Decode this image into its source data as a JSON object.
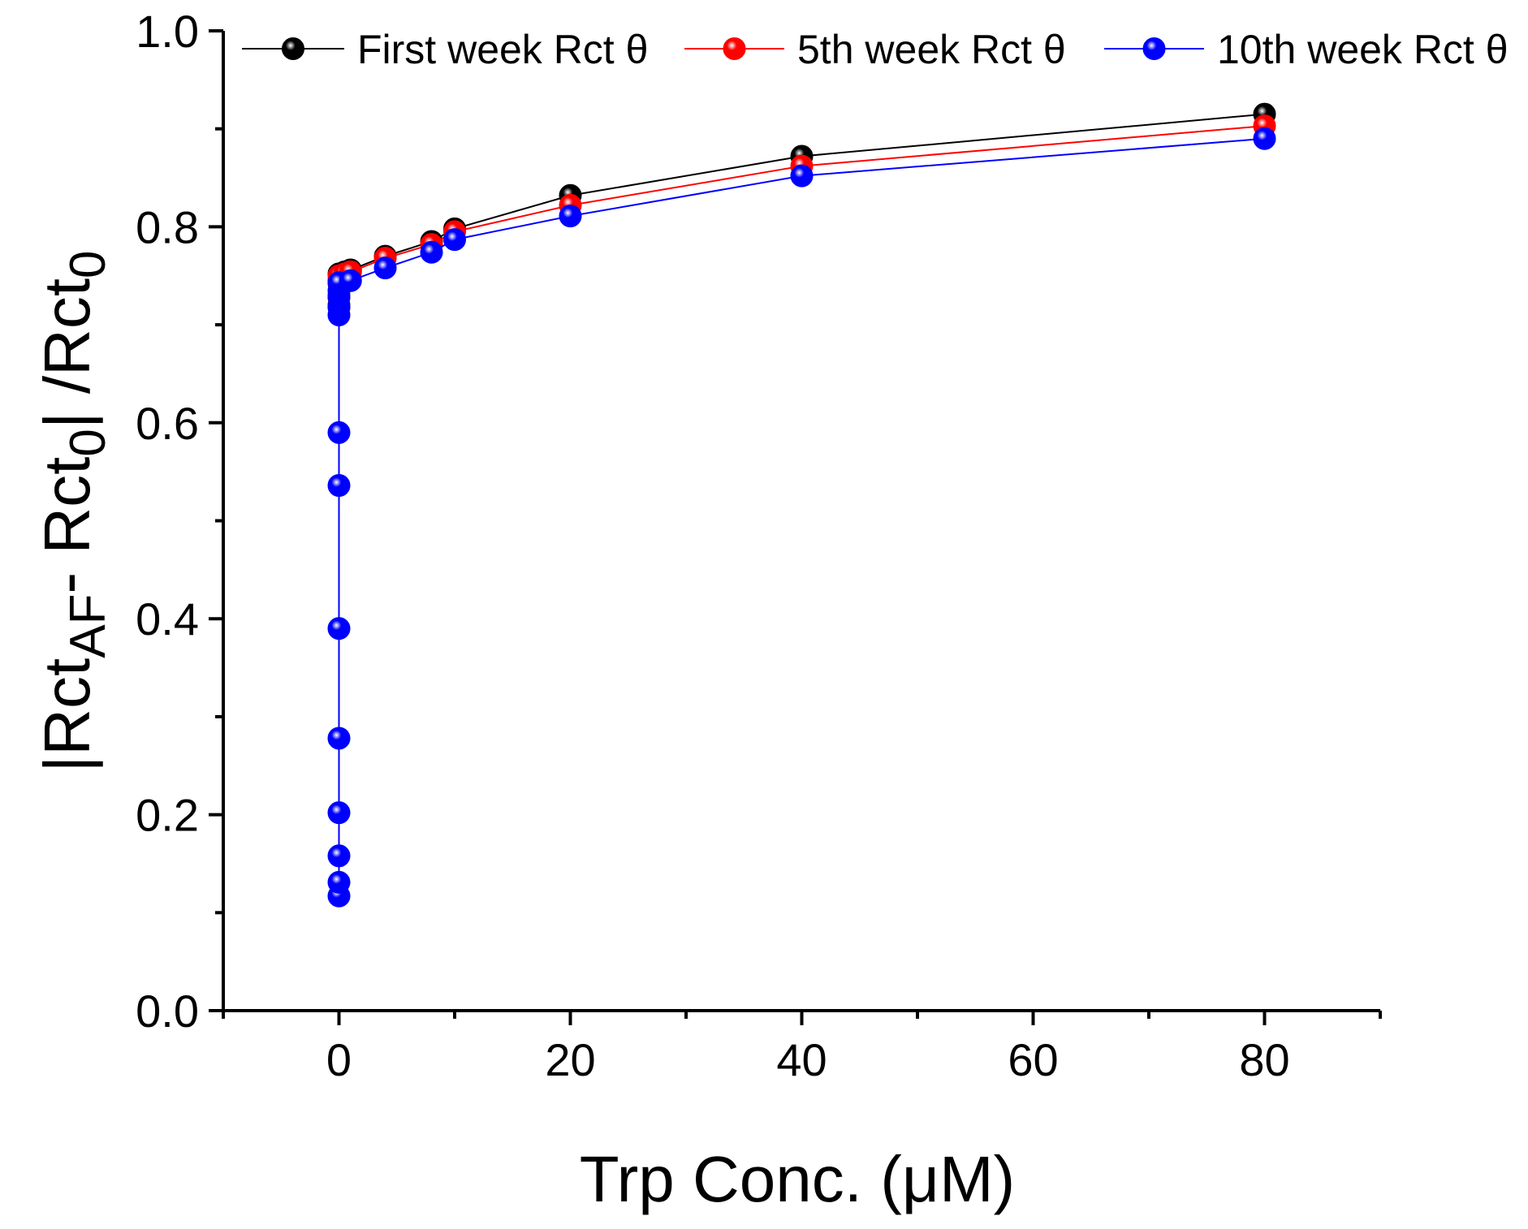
{
  "chart_data": {
    "type": "line",
    "title": "",
    "xlabel": "Trp Conc. (μM)",
    "ylabel": {
      "parts": [
        "|Rct",
        "AF",
        "- Rct",
        "0",
        "| /Rct",
        "0"
      ]
    },
    "xlim": [
      -10,
      90
    ],
    "ylim": [
      0.0,
      1.0
    ],
    "x_ticks": [
      "0",
      "20",
      "40",
      "60",
      "80"
    ],
    "y_ticks": [
      "0.0",
      "0.2",
      "0.4",
      "0.6",
      "0.8",
      "1.0"
    ],
    "legend_position": "top",
    "series": [
      {
        "name": "First week Rct θ",
        "color": "#000000",
        "x": [
          0,
          0,
          0,
          0,
          0.5,
          1,
          4,
          8,
          10,
          20,
          40,
          80
        ],
        "y": [
          0.72,
          0.73,
          0.745,
          0.752,
          0.754,
          0.756,
          0.77,
          0.785,
          0.798,
          0.832,
          0.872,
          0.915
        ]
      },
      {
        "name": "5th week Rct θ",
        "color": "#ff0000",
        "x": [
          0,
          0,
          0,
          0,
          0.5,
          1,
          4,
          8,
          10,
          20,
          40,
          80
        ],
        "y": [
          0.718,
          0.728,
          0.742,
          0.75,
          0.752,
          0.754,
          0.768,
          0.782,
          0.795,
          0.822,
          0.862,
          0.903
        ]
      },
      {
        "name": "10th week Rct θ",
        "color": "#0000ff",
        "x": [
          0,
          0,
          0,
          0,
          0,
          0,
          0,
          0,
          0,
          0,
          0,
          0,
          0,
          1,
          4,
          8,
          10,
          20,
          40,
          80
        ],
        "y": [
          0.117,
          0.131,
          0.158,
          0.202,
          0.278,
          0.39,
          0.536,
          0.59,
          0.71,
          0.718,
          0.728,
          0.735,
          0.743,
          0.745,
          0.758,
          0.774,
          0.787,
          0.811,
          0.852,
          0.89
        ]
      }
    ]
  }
}
